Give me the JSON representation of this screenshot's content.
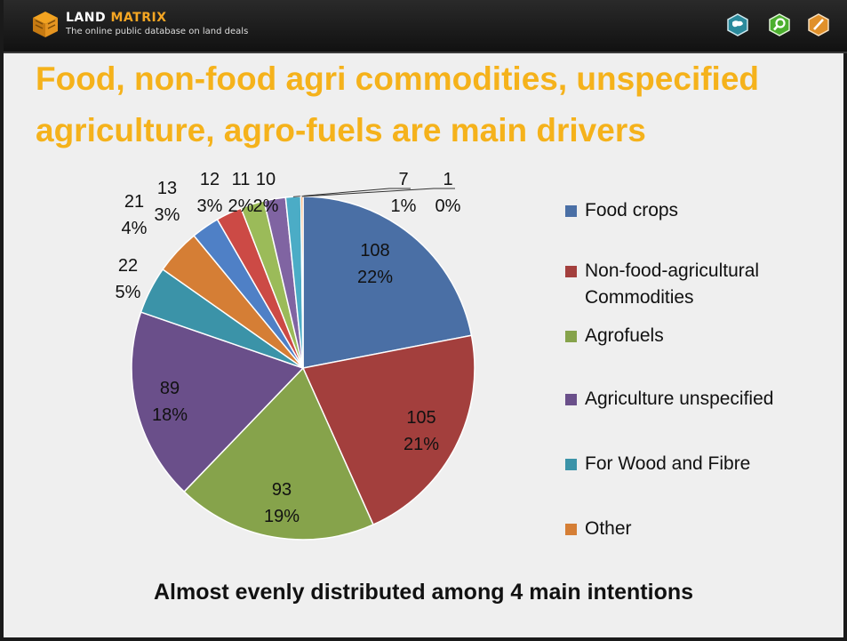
{
  "header": {
    "brand_part1": "LAND ",
    "brand_part2": "MATRIX",
    "subtitle": "The online public database on land deals",
    "icons": [
      "globe-icon",
      "search-icon",
      "edit-icon"
    ],
    "colors": {
      "bar": "#1c1c1c",
      "accent": "#f5a623",
      "icon_teal": "#2b8a9c",
      "icon_green": "#4caf2f",
      "icon_orange": "#e0902a"
    }
  },
  "slide": {
    "title": "Food, non-food agri commodities, unspecified agriculture, agro-fuels are main drivers",
    "caption": "Almost evenly distributed among 4 main intentions",
    "title_color": "#f5b21b"
  },
  "chart_data": {
    "type": "pie",
    "title": "",
    "legend_position": "right",
    "slices": [
      {
        "value": 108,
        "pct": "22%",
        "color": "#4a6fa5",
        "legend": "Food crops"
      },
      {
        "value": 105,
        "pct": "21%",
        "color": "#a33f3d",
        "legend": "Non-food-agricultural Commodities"
      },
      {
        "value": 93,
        "pct": "19%",
        "color": "#86a34b",
        "legend": "Agrofuels"
      },
      {
        "value": 89,
        "pct": "18%",
        "color": "#6a4f8a",
        "legend": "Agriculture unspecified"
      },
      {
        "value": 22,
        "pct": "5%",
        "color": "#3b93a8",
        "legend": "For Wood and Fibre"
      },
      {
        "value": 21,
        "pct": "4%",
        "color": "#d57e35",
        "legend": "Other"
      },
      {
        "value": 13,
        "pct": "3%",
        "color": "#4f80c6"
      },
      {
        "value": 12,
        "pct": "3%",
        "color": "#cc4a45"
      },
      {
        "value": 11,
        "pct": "2%",
        "color": "#9bbb59"
      },
      {
        "value": 10,
        "pct": "2%",
        "color": "#8064a2"
      },
      {
        "value": 7,
        "pct": "1%",
        "color": "#4bacc6"
      },
      {
        "value": 1,
        "pct": "0%",
        "color": "#f79646"
      }
    ]
  }
}
